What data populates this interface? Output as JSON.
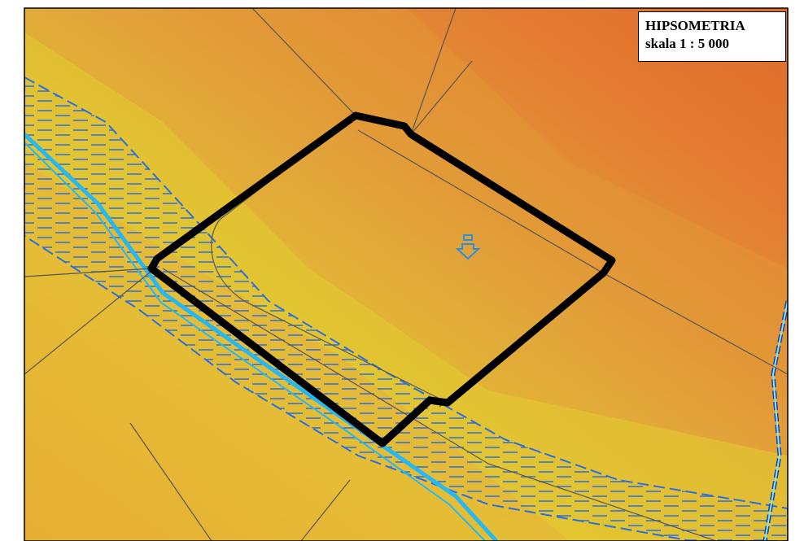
{
  "legend": {
    "title": "HIPSOMETRIA",
    "scale": "skala 1 : 5 000"
  }
}
